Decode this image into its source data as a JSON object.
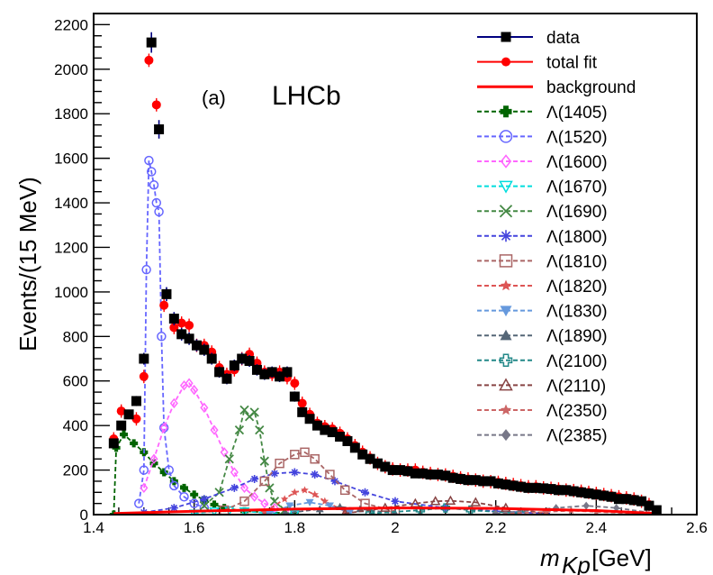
{
  "chart_data": {
    "type": "scatter",
    "xlabel_main": "m",
    "xlabel_sub": "Kp",
    "xlabel_unit": " [GeV]",
    "ylabel": "Events/(15 MeV)",
    "xlim": [
      1.4,
      2.6
    ],
    "ylim": [
      0,
      2250
    ],
    "x_ticks": [
      "1.4",
      "1.6",
      "1.8",
      "2",
      "2.2",
      "2.4",
      "2.6"
    ],
    "y_ticks": [
      "0",
      "200",
      "400",
      "600",
      "800",
      "1000",
      "1200",
      "1400",
      "1600",
      "1800",
      "2000",
      "2200"
    ],
    "annotations": {
      "panel": "(a)",
      "experiment": "LHCb"
    },
    "legend_position": "top-right",
    "legend": [
      {
        "label": "data",
        "color": "#000080",
        "marker": "square"
      },
      {
        "label": "total fit",
        "color": "#ff0000",
        "marker": "circle"
      },
      {
        "label": "background",
        "color": "#ff0000",
        "marker": "none"
      },
      {
        "label": "Λ(1405)",
        "color": "#006400",
        "marker": "cross"
      },
      {
        "label": "Λ(1520)",
        "color": "#6666ff",
        "marker": "open-circle"
      },
      {
        "label": "Λ(1600)",
        "color": "#ff66ff",
        "marker": "open-diamond"
      },
      {
        "label": "Λ(1670)",
        "color": "#00dddd",
        "marker": "open-triangle-down"
      },
      {
        "label": "Λ(1690)",
        "color": "#448844",
        "marker": "x"
      },
      {
        "label": "Λ(1800)",
        "color": "#4444dd",
        "marker": "asterisk"
      },
      {
        "label": "Λ(1810)",
        "color": "#aa6666",
        "marker": "open-square"
      },
      {
        "label": "Λ(1820)",
        "color": "#dd5555",
        "marker": "star"
      },
      {
        "label": "Λ(1830)",
        "color": "#6699dd",
        "marker": "triangle-down"
      },
      {
        "label": "Λ(1890)",
        "color": "#556677",
        "marker": "triangle-up"
      },
      {
        "label": "Λ(2100)",
        "color": "#228888",
        "marker": "open-cross"
      },
      {
        "label": "Λ(2110)",
        "color": "#884444",
        "marker": "open-triangle-up"
      },
      {
        "label": "Λ(2350)",
        "color": "#cc6666",
        "marker": "star"
      },
      {
        "label": "Λ(2385)",
        "color": "#777788",
        "marker": "diamond"
      }
    ],
    "series": [
      {
        "name": "data",
        "x": [
          1.44,
          1.455,
          1.47,
          1.485,
          1.5,
          1.515,
          1.53,
          1.545,
          1.56,
          1.575,
          1.59,
          1.605,
          1.62,
          1.635,
          1.65,
          1.665,
          1.68,
          1.695,
          1.71,
          1.725,
          1.74,
          1.755,
          1.77,
          1.785,
          1.8,
          1.815,
          1.83,
          1.845,
          1.86,
          1.875,
          1.89,
          1.905,
          1.92,
          1.935,
          1.95,
          1.965,
          1.98,
          1.995,
          2.01,
          2.025,
          2.04,
          2.055,
          2.07,
          2.085,
          2.1,
          2.115,
          2.13,
          2.145,
          2.16,
          2.175,
          2.19,
          2.205,
          2.22,
          2.235,
          2.25,
          2.265,
          2.28,
          2.295,
          2.31,
          2.325,
          2.34,
          2.355,
          2.37,
          2.385,
          2.4,
          2.415,
          2.43,
          2.445,
          2.46,
          2.475,
          2.49,
          2.505,
          2.52
        ],
        "y": [
          320,
          400,
          450,
          510,
          700,
          2120,
          1730,
          990,
          880,
          810,
          790,
          760,
          740,
          700,
          640,
          610,
          670,
          700,
          690,
          650,
          630,
          640,
          620,
          640,
          530,
          460,
          430,
          400,
          380,
          370,
          350,
          330,
          300,
          270,
          250,
          230,
          215,
          200,
          200,
          195,
          185,
          185,
          180,
          180,
          175,
          165,
          160,
          155,
          155,
          150,
          150,
          140,
          135,
          130,
          125,
          120,
          120,
          118,
          115,
          110,
          110,
          105,
          100,
          95,
          90,
          85,
          80,
          70,
          70,
          65,
          60,
          40,
          20
        ]
      },
      {
        "name": "total fit",
        "x": [
          1.44,
          1.455,
          1.485,
          1.5,
          1.51,
          1.525,
          1.54,
          1.56,
          1.575,
          1.59,
          1.605,
          1.62,
          1.635,
          1.65,
          1.665,
          1.68,
          1.695,
          1.71,
          1.725,
          1.74,
          1.755,
          1.77,
          1.785,
          1.8,
          1.815,
          1.83,
          1.845,
          1.86,
          1.875,
          1.89,
          1.905,
          1.92,
          1.935,
          1.95,
          1.965,
          1.98,
          1.995,
          2.01,
          2.025,
          2.04,
          2.055,
          2.07,
          2.085,
          2.1,
          2.115,
          2.13,
          2.145,
          2.16,
          2.175,
          2.19,
          2.205,
          2.22,
          2.235,
          2.25,
          2.265,
          2.28,
          2.295,
          2.31,
          2.325,
          2.34,
          2.355,
          2.37,
          2.385,
          2.4,
          2.415,
          2.43,
          2.445,
          2.46,
          2.475,
          2.49,
          2.505
        ],
        "y": [
          340,
          465,
          430,
          620,
          2040,
          1840,
          940,
          840,
          860,
          850,
          760,
          760,
          730,
          660,
          630,
          650,
          700,
          720,
          680,
          640,
          630,
          640,
          615,
          590,
          500,
          450,
          410,
          395,
          385,
          365,
          340,
          310,
          280,
          255,
          230,
          215,
          205,
          200,
          200,
          200,
          190,
          185,
          180,
          178,
          172,
          165,
          160,
          155,
          150,
          148,
          145,
          140,
          135,
          130,
          125,
          125,
          120,
          118,
          115,
          110,
          108,
          105,
          100,
          95,
          90,
          85,
          80,
          75,
          70,
          60,
          45
        ]
      },
      {
        "name": "background",
        "x": [
          1.44,
          1.6,
          1.8,
          2.0,
          2.2,
          2.4,
          2.52
        ],
        "y": [
          5,
          15,
          25,
          30,
          28,
          18,
          5
        ]
      },
      {
        "name": "Λ(1405)",
        "x": [
          1.44,
          1.445,
          1.46,
          1.48,
          1.5,
          1.52,
          1.54,
          1.56,
          1.58,
          1.6,
          1.62,
          1.64,
          1.66,
          1.7,
          1.8
        ],
        "y": [
          0,
          300,
          360,
          320,
          280,
          230,
          190,
          150,
          120,
          90,
          65,
          45,
          30,
          15,
          5
        ]
      },
      {
        "name": "Λ(1520)",
        "x": [
          1.49,
          1.5,
          1.505,
          1.51,
          1.515,
          1.52,
          1.525,
          1.53,
          1.535,
          1.54,
          1.55,
          1.56,
          1.58,
          1.6,
          1.62
        ],
        "y": [
          50,
          200,
          1100,
          1590,
          1540,
          1480,
          1400,
          1360,
          800,
          390,
          200,
          130,
          80,
          50,
          30
        ]
      },
      {
        "name": "Λ(1600)",
        "x": [
          1.5,
          1.52,
          1.54,
          1.56,
          1.58,
          1.59,
          1.6,
          1.62,
          1.64,
          1.66,
          1.68,
          1.7,
          1.72,
          1.74,
          1.76,
          1.8
        ],
        "y": [
          120,
          250,
          390,
          500,
          580,
          590,
          560,
          480,
          380,
          280,
          190,
          120,
          80,
          50,
          30,
          10
        ]
      },
      {
        "name": "Λ(1670)",
        "x": [
          1.6,
          1.64,
          1.67,
          1.7,
          1.74,
          1.8
        ],
        "y": [
          5,
          15,
          20,
          15,
          8,
          3
        ]
      },
      {
        "name": "Λ(1690)",
        "x": [
          1.62,
          1.65,
          1.67,
          1.69,
          1.7,
          1.71,
          1.72,
          1.73,
          1.74,
          1.75,
          1.76,
          1.78
        ],
        "y": [
          40,
          100,
          250,
          380,
          470,
          440,
          460,
          380,
          240,
          120,
          60,
          20
        ]
      },
      {
        "name": "Λ(1800)",
        "x": [
          1.5,
          1.56,
          1.62,
          1.68,
          1.72,
          1.76,
          1.8,
          1.84,
          1.88,
          1.94,
          2.0,
          2.1,
          2.2,
          2.3
        ],
        "y": [
          10,
          30,
          70,
          120,
          160,
          185,
          190,
          180,
          150,
          100,
          60,
          30,
          15,
          5
        ]
      },
      {
        "name": "Λ(1810)",
        "x": [
          1.66,
          1.7,
          1.74,
          1.77,
          1.8,
          1.82,
          1.84,
          1.87,
          1.9,
          1.94,
          2.0
        ],
        "y": [
          20,
          60,
          150,
          230,
          270,
          280,
          250,
          180,
          110,
          50,
          15
        ]
      },
      {
        "name": "Λ(1820)",
        "x": [
          1.74,
          1.78,
          1.8,
          1.82,
          1.84,
          1.86,
          1.9
        ],
        "y": [
          10,
          70,
          100,
          110,
          90,
          60,
          15
        ]
      },
      {
        "name": "Λ(1830)",
        "x": [
          1.75,
          1.79,
          1.83,
          1.87,
          1.91
        ],
        "y": [
          5,
          40,
          55,
          40,
          10
        ]
      },
      {
        "name": "Λ(1890)",
        "x": [
          1.78,
          1.85,
          1.89,
          1.93,
          2.0
        ],
        "y": [
          5,
          25,
          35,
          25,
          5
        ]
      },
      {
        "name": "Λ(2100)",
        "x": [
          1.95,
          2.05,
          2.1,
          2.15,
          2.25
        ],
        "y": [
          5,
          20,
          30,
          20,
          5
        ]
      },
      {
        "name": "Λ(2110)",
        "x": [
          1.9,
          1.98,
          2.04,
          2.08,
          2.11,
          2.16,
          2.22,
          2.3
        ],
        "y": [
          5,
          30,
          50,
          60,
          62,
          55,
          30,
          5
        ]
      },
      {
        "name": "Λ(2350)",
        "x": [
          2.2,
          2.3,
          2.35,
          2.4,
          2.5
        ],
        "y": [
          3,
          12,
          18,
          12,
          3
        ]
      },
      {
        "name": "Λ(2385)",
        "x": [
          2.2,
          2.32,
          2.38,
          2.44,
          2.52
        ],
        "y": [
          5,
          30,
          40,
          30,
          5
        ]
      }
    ]
  }
}
